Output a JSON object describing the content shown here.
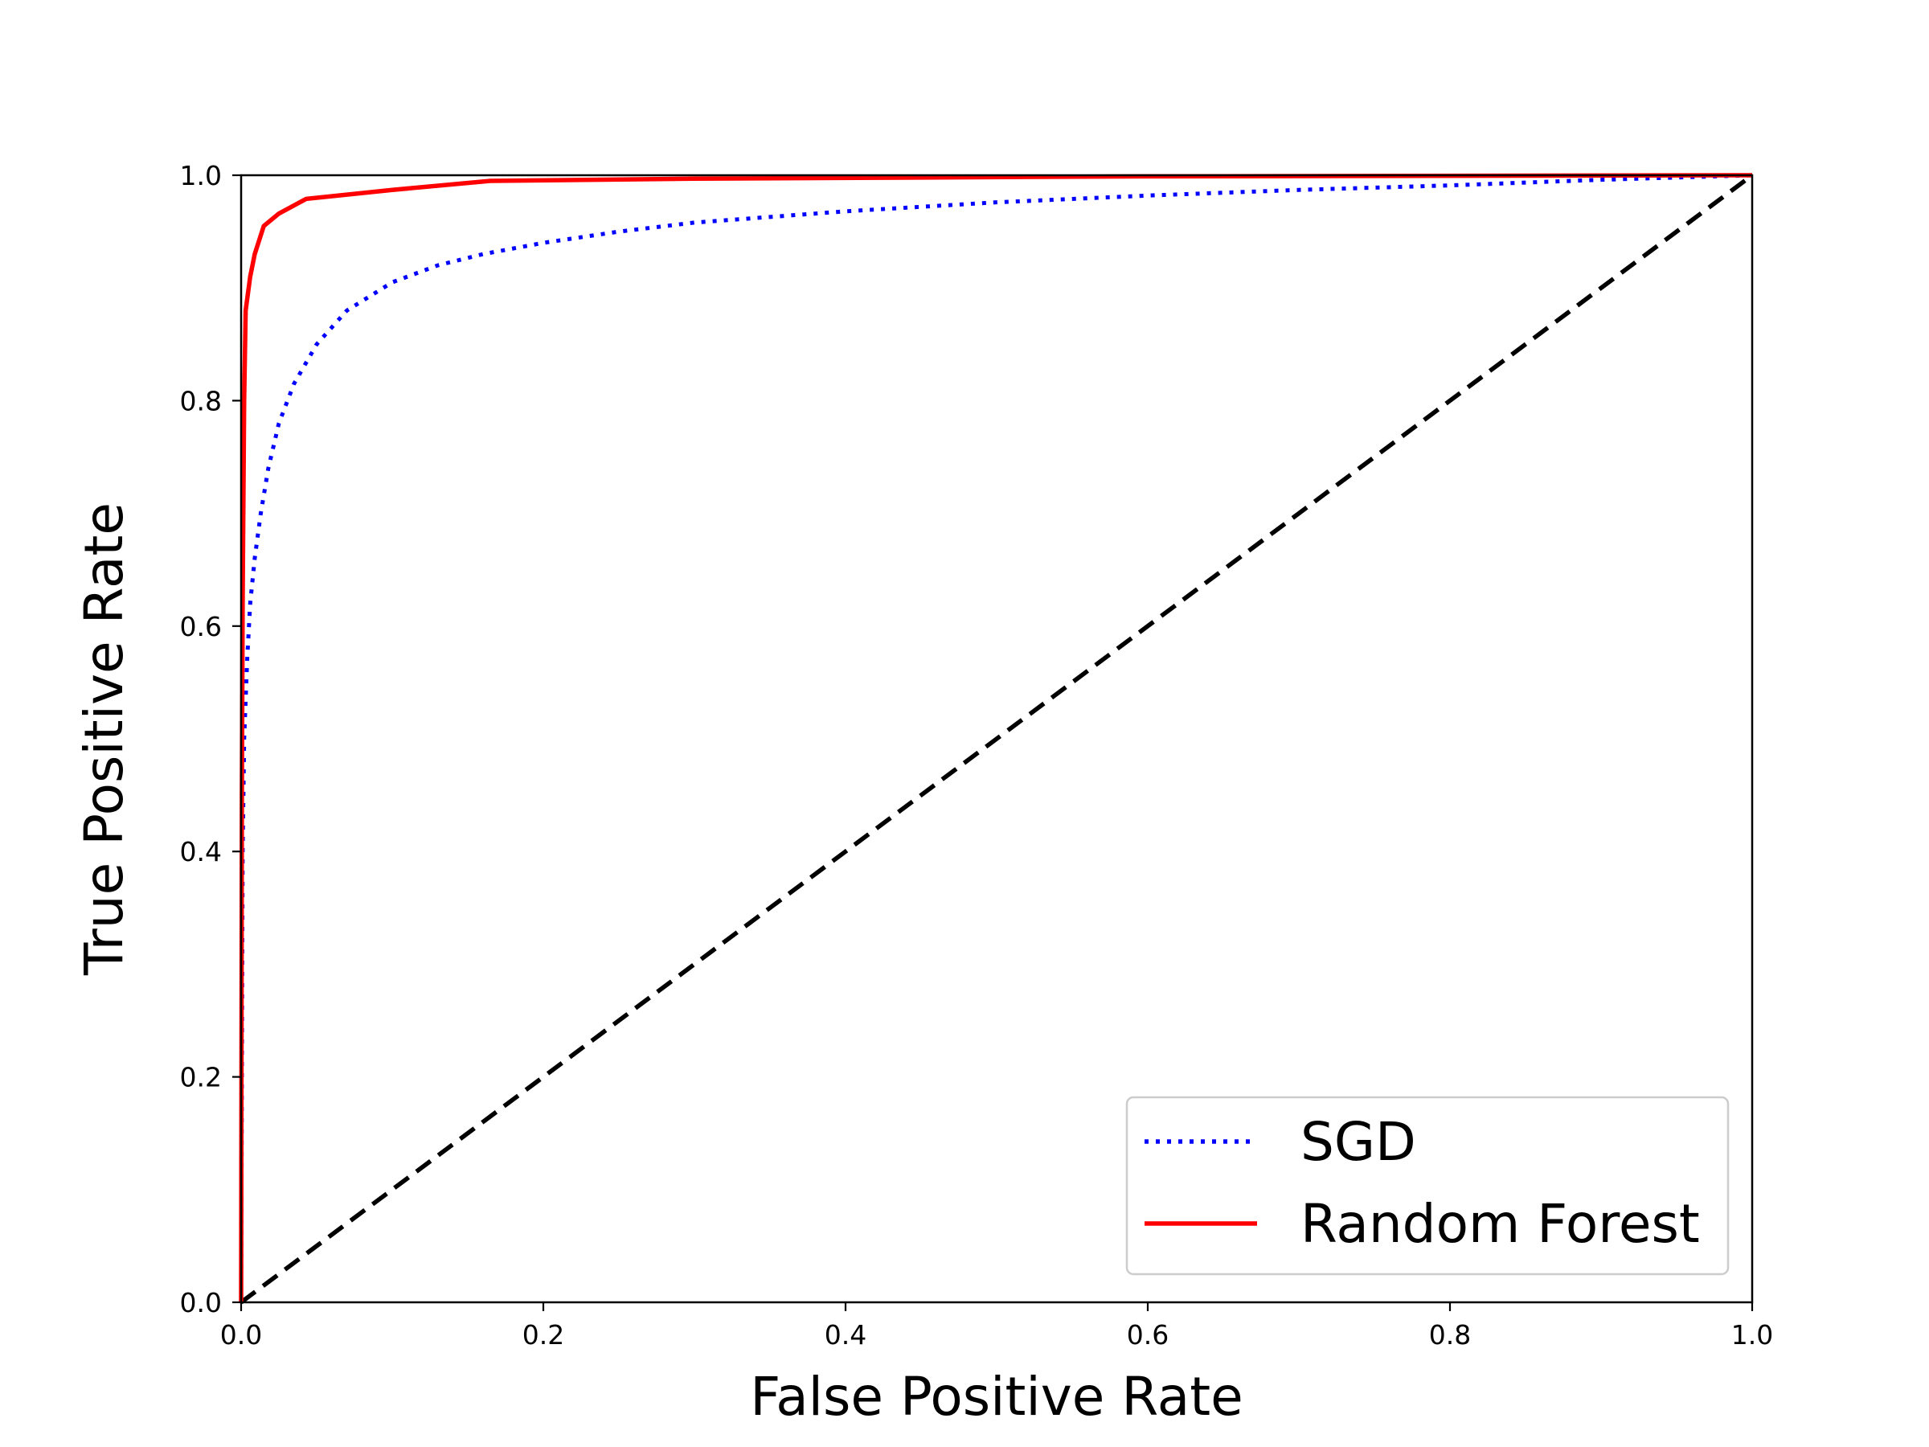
{
  "chart_data": {
    "type": "line",
    "title": "",
    "xlabel": "False Positive Rate",
    "ylabel": "True Positive Rate",
    "xlim": [
      0.0,
      1.0
    ],
    "ylim": [
      0.0,
      1.0
    ],
    "xticks": [
      "0.0",
      "0.2",
      "0.4",
      "0.6",
      "0.8",
      "1.0"
    ],
    "yticks": [
      "0.0",
      "0.2",
      "0.4",
      "0.6",
      "0.8",
      "1.0"
    ],
    "grid": false,
    "legend_position": "lower right",
    "series": [
      {
        "name": "SGD",
        "color": "#0000ff",
        "style": "dotted",
        "x": [
          0.0,
          0.001,
          0.002,
          0.004,
          0.006,
          0.009,
          0.013,
          0.018,
          0.025,
          0.035,
          0.05,
          0.07,
          0.1,
          0.13,
          0.16,
          0.2,
          0.25,
          0.3,
          0.4,
          0.5,
          0.6,
          0.7,
          0.8,
          0.9,
          1.0
        ],
        "y": [
          0.0,
          0.4,
          0.5,
          0.57,
          0.62,
          0.66,
          0.7,
          0.74,
          0.78,
          0.815,
          0.85,
          0.88,
          0.905,
          0.92,
          0.93,
          0.94,
          0.95,
          0.958,
          0.968,
          0.976,
          0.982,
          0.987,
          0.991,
          0.996,
          1.0
        ]
      },
      {
        "name": "Random Forest",
        "color": "#ff0000",
        "style": "solid",
        "x": [
          0.0,
          0.0005,
          0.001,
          0.002,
          0.003,
          0.006,
          0.009,
          0.015,
          0.025,
          0.043,
          0.1,
          0.165,
          0.3,
          0.6,
          1.0
        ],
        "y": [
          0.0,
          0.45,
          0.62,
          0.8,
          0.88,
          0.91,
          0.93,
          0.955,
          0.966,
          0.979,
          0.987,
          0.995,
          0.997,
          0.999,
          1.0
        ]
      },
      {
        "color": "#000000",
        "style": "dashed",
        "x": [
          0.0,
          1.0
        ],
        "y": [
          0.0,
          1.0
        ]
      }
    ]
  }
}
